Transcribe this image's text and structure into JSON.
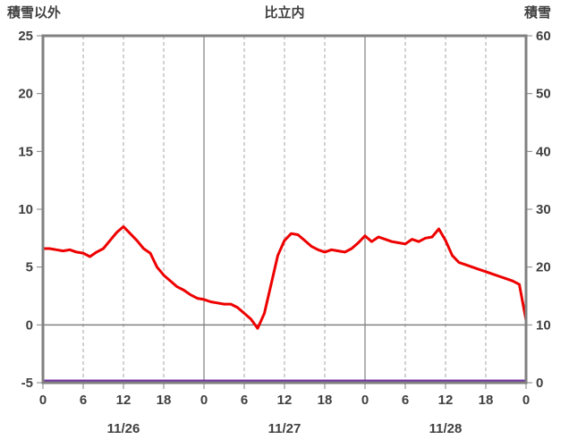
{
  "chart_data": {
    "type": "line",
    "title": "比立内",
    "left_axis": {
      "title": "積雪以外",
      "min": -5,
      "max": 25,
      "tick_values": [
        25,
        20,
        15,
        10,
        5,
        0,
        -5
      ],
      "tick_labels": [
        "25",
        "20",
        "15",
        "10",
        "5",
        "0",
        "-5"
      ]
    },
    "right_axis": {
      "title": "積雪",
      "min": 0,
      "max": 60,
      "tick_values": [
        60,
        50,
        40,
        30,
        20,
        10,
        0
      ],
      "tick_labels": [
        "60",
        "50",
        "40",
        "30",
        "20",
        "10",
        "0"
      ]
    },
    "x_axis": {
      "total_hours": 72,
      "tick_hours": [
        0,
        6,
        12,
        18,
        24,
        30,
        36,
        42,
        48,
        54,
        60,
        66,
        72
      ],
      "tick_labels": [
        "0",
        "6",
        "12",
        "18",
        "0",
        "6",
        "12",
        "18",
        "0",
        "6",
        "12",
        "18",
        "0"
      ],
      "day_labels": [
        {
          "text": "11/26",
          "center_hour": 12
        },
        {
          "text": "11/27",
          "center_hour": 36
        },
        {
          "text": "11/28",
          "center_hour": 60
        }
      ]
    },
    "series": [
      {
        "name": "積雪以外",
        "axis": "left",
        "color": "#ee0000",
        "hours_step": 1,
        "values": [
          6.6,
          6.6,
          6.5,
          6.4,
          6.5,
          6.3,
          6.2,
          5.9,
          6.3,
          6.6,
          7.3,
          8.0,
          8.5,
          7.9,
          7.3,
          6.6,
          6.2,
          5.0,
          4.3,
          3.8,
          3.3,
          3.0,
          2.6,
          2.3,
          2.2,
          2.0,
          1.9,
          1.8,
          1.8,
          1.5,
          1.0,
          0.5,
          -0.3,
          1.0,
          3.5,
          6.0,
          7.3,
          7.9,
          7.8,
          7.3,
          6.8,
          6.5,
          6.3,
          6.5,
          6.4,
          6.3,
          6.6,
          7.1,
          7.7,
          7.2,
          7.6,
          7.4,
          7.2,
          7.1,
          7.0,
          7.4,
          7.2,
          7.5,
          7.6,
          8.3,
          7.3,
          6.0,
          5.4,
          5.2,
          5.0,
          4.8,
          4.6,
          4.4,
          4.2,
          4.0,
          3.8,
          3.5,
          0.4
        ]
      },
      {
        "name": "積雪",
        "axis": "right",
        "color": "#7030a0",
        "constant_value": 0
      }
    ],
    "grid": {
      "minor_vertical_style": "dashed",
      "day_boundary_style": "solid",
      "horizontal_zero_line": true
    },
    "colors": {
      "border": "#808080",
      "grid_solid": "#808080",
      "grid_dashed": "#a6a6a6",
      "zero_line": "#808080",
      "text": "#404040",
      "background": "#ffffff"
    }
  }
}
